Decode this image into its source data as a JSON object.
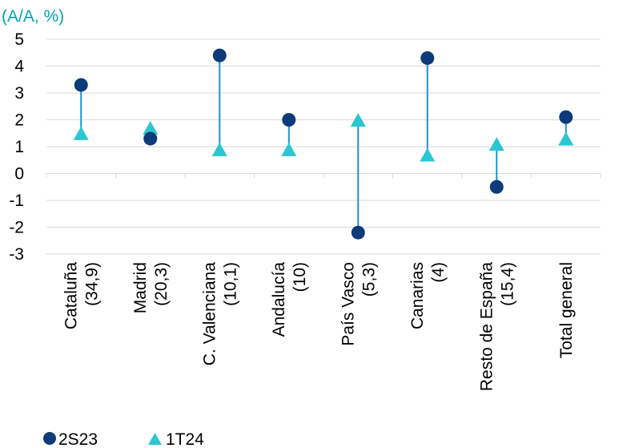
{
  "chart_data": {
    "type": "dot-range",
    "unit_label": "(A/A, %)",
    "ylim": [
      -3,
      5
    ],
    "yticks": [
      "5",
      "4",
      "3",
      "2",
      "1",
      "0",
      "-1",
      "-2",
      "-3"
    ],
    "grid": true,
    "legend_position": "bottom-left",
    "categories": [
      {
        "line1": "Cataluña",
        "line2": "(34,9)"
      },
      {
        "line1": "Madrid",
        "line2": "(20,3)"
      },
      {
        "line1": "C. Valenciana",
        "line2": "(10,1)"
      },
      {
        "line1": "Andalucía",
        "line2": "(10)"
      },
      {
        "line1": "País Vasco",
        "line2": "(5,3)"
      },
      {
        "line1": "Canarias",
        "line2": "(4)"
      },
      {
        "line1": "Resto de España",
        "line2": "(15,4)"
      },
      {
        "line1": "Total general",
        "line2": ""
      }
    ],
    "series": [
      {
        "name": "2S23",
        "marker": "circle",
        "color": "#0D3A78",
        "values": [
          3.3,
          1.3,
          4.4,
          2.0,
          -2.2,
          4.3,
          -0.5,
          2.1
        ]
      },
      {
        "name": "1T24",
        "marker": "triangle",
        "color": "#2BC6D1",
        "values": [
          1.5,
          1.7,
          0.9,
          0.9,
          2.0,
          0.7,
          1.1,
          1.3
        ]
      }
    ],
    "connector_color": "#1E90D6",
    "grid_color": "#D9D9D9"
  }
}
